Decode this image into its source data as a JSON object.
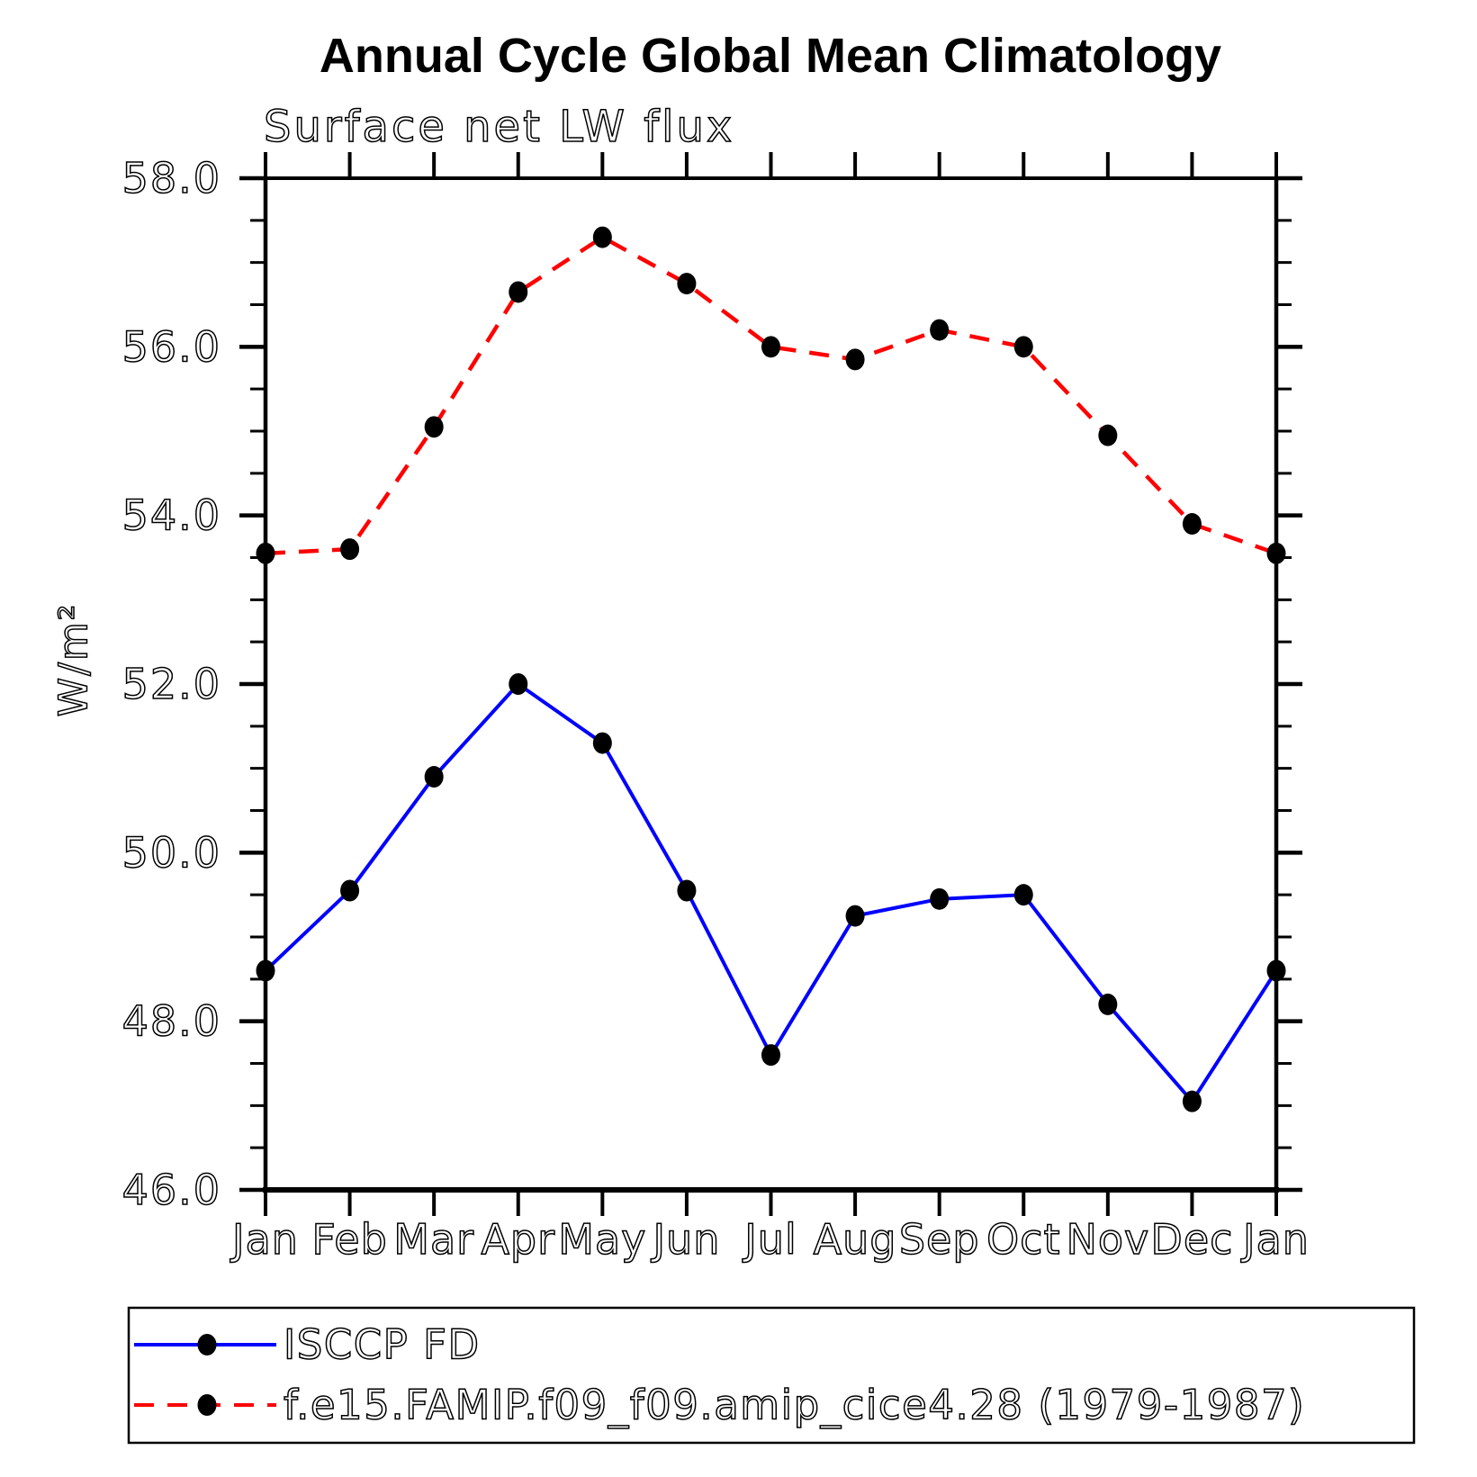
{
  "chart_data": {
    "type": "line",
    "title": "Annual Cycle Global Mean Climatology",
    "subtitle": "Surface net LW flux",
    "ylabel": "W/m²",
    "xlabel": "",
    "categories": [
      "Jan",
      "Feb",
      "Mar",
      "Apr",
      "May",
      "Jun",
      "Jul",
      "Aug",
      "Sep",
      "Oct",
      "Nov",
      "Dec",
      "Jan"
    ],
    "ylim": [
      46.0,
      58.0
    ],
    "y_major_ticks": [
      46.0,
      48.0,
      50.0,
      52.0,
      54.0,
      56.0,
      58.0
    ],
    "y_tick_labels": [
      "46.0",
      "48.0",
      "50.0",
      "52.0",
      "54.0",
      "56.0",
      "58.0"
    ],
    "y_minor_step": 0.5,
    "grid": false,
    "legend_position": "bottom",
    "axis_color": "#000000",
    "background_color": "#ffffff",
    "marker_color": "#000000",
    "series": [
      {
        "name": "ISCCP FD",
        "color": "#0000ff",
        "line_style": "solid",
        "marker": "filled-circle",
        "values": [
          48.6,
          49.55,
          50.9,
          52.0,
          51.3,
          49.55,
          47.6,
          49.25,
          49.45,
          49.5,
          48.2,
          47.05,
          48.6
        ]
      },
      {
        "name": "f.e15.FAMIP.f09_f09.amip_cice4.28 (1979-1987)",
        "color": "#ff0000",
        "line_style": "dashed",
        "marker": "filled-circle",
        "values": [
          53.55,
          53.6,
          55.05,
          56.65,
          57.3,
          56.75,
          56.0,
          55.85,
          56.2,
          56.0,
          54.95,
          53.9,
          53.55
        ]
      }
    ]
  }
}
